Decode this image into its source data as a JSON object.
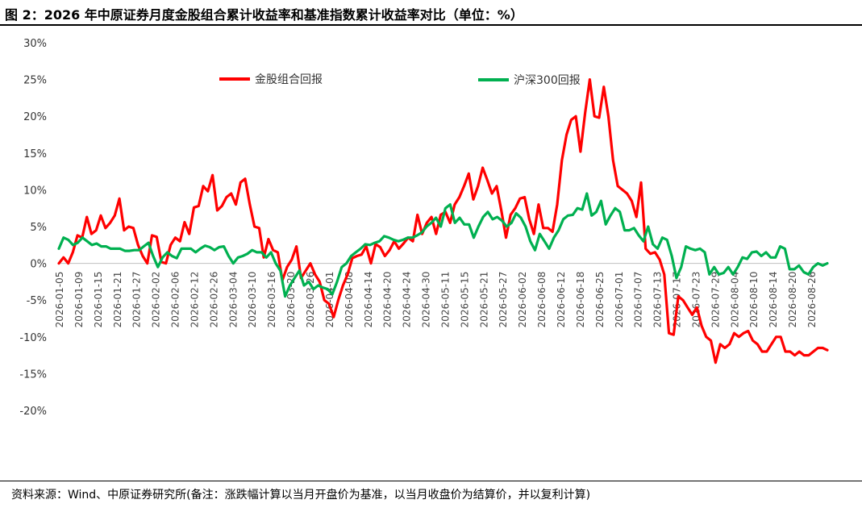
{
  "header": {
    "title": "图 2：2026 年中原证券月度金股组合累计收益率和基准指数累计收益率对比（单位：%）"
  },
  "footer": {
    "source": "资料来源：Wind、中原证券研究所(备注：涨跌幅计算以当月开盘价为基准，以当月收盘价为结算价，并以复利计算)"
  },
  "chart_data": {
    "type": "line",
    "ylim": [
      -20,
      30
    ],
    "ytick_step": 5,
    "ytick_labels": [
      "30%",
      "25%",
      "20%",
      "15%",
      "10%",
      "5%",
      "0%",
      "-5%",
      "-10%",
      "-15%",
      "-20%"
    ],
    "x_tick_labels": [
      "2026-01-05",
      "2026-01-09",
      "2026-01-15",
      "2026-01-21",
      "2026-01-27",
      "2026-02-02",
      "2026-02-06",
      "2026-02-12",
      "2026-02-26",
      "2026-03-04",
      "2026-03-10",
      "2026-03-16",
      "2026-03-20",
      "2026-03-26",
      "2026-04-01",
      "2026-04-08",
      "2026-04-14",
      "2026-04-20",
      "2026-04-24",
      "2026-04-30",
      "2026-05-11",
      "2026-05-15",
      "2026-05-21",
      "2026-05-27",
      "2026-06-02",
      "2026-06-08",
      "2026-06-12",
      "2026-06-18",
      "2026-06-25",
      "2026-07-01",
      "2026-07-07",
      "2026-07-13",
      "2026-07-17",
      "2026-07-23",
      "2026-07-29",
      "2026-08-04",
      "2026-08-10",
      "2026-08-14",
      "2026-08-20",
      "2026-08-26"
    ],
    "legend_position": "top",
    "series": [
      {
        "name": "金股组合回报",
        "color": "#ff0000",
        "values": [
          0.0,
          0.8,
          0.0,
          1.5,
          3.8,
          3.5,
          6.3,
          4.0,
          4.5,
          6.5,
          4.8,
          5.5,
          6.5,
          8.8,
          4.5,
          5.0,
          4.8,
          2.5,
          1.0,
          0.0,
          3.8,
          3.6,
          0.2,
          0.0,
          2.5,
          3.5,
          3.0,
          5.6,
          4.0,
          7.6,
          7.8,
          10.5,
          9.8,
          12.0,
          7.2,
          7.8,
          9.0,
          9.5,
          8.0,
          11.0,
          11.5,
          8.0,
          5.0,
          4.8,
          0.8,
          3.3,
          1.8,
          1.5,
          -2.3,
          -0.5,
          0.5,
          2.3,
          -2.0,
          -1.0,
          0.0,
          -1.5,
          -2.5,
          -5.0,
          -5.5,
          -7.3,
          -5.0,
          -3.0,
          -1.5,
          0.7,
          1.0,
          1.2,
          2.3,
          0.0,
          2.6,
          2.2,
          1.0,
          1.8,
          3.0,
          2.0,
          2.7,
          3.5,
          3.0,
          6.6,
          4.0,
          5.5,
          6.3,
          4.0,
          6.6,
          7.0,
          5.5,
          8.0,
          9.0,
          10.5,
          12.2,
          8.7,
          10.5,
          13.0,
          11.3,
          9.5,
          10.5,
          7.2,
          3.5,
          6.6,
          7.5,
          8.8,
          9.0,
          6.0,
          4.0,
          8.0,
          4.8,
          4.8,
          4.3,
          8.0,
          14.0,
          17.5,
          19.5,
          20.0,
          15.2,
          20.5,
          25.0,
          20.0,
          19.8,
          24.0,
          20.0,
          14.0,
          10.5,
          10.0,
          9.5,
          8.5,
          6.3,
          11.0,
          2.0,
          1.3,
          1.5,
          0.5,
          -1.5,
          -9.5,
          -9.7,
          -4.5,
          -5.0,
          -6.0,
          -7.0,
          -6.0,
          -8.5,
          -10.0,
          -10.5,
          -13.5,
          -11.0,
          -11.5,
          -11.0,
          -9.5,
          -10.0,
          -9.5,
          -9.2,
          -10.5,
          -11.0,
          -12.0,
          -12.0,
          -11.0,
          -10.0,
          -10.0,
          -12.0,
          -12.0,
          -12.5,
          -12.0,
          -12.5,
          -12.5,
          -12.0,
          -11.5,
          -11.5,
          -11.8
        ]
      },
      {
        "name": "沪深300回报",
        "color": "#00b050",
        "values": [
          2.0,
          3.5,
          3.2,
          2.5,
          2.8,
          3.5,
          3.0,
          2.5,
          2.7,
          2.3,
          2.3,
          2.0,
          2.0,
          2.0,
          1.7,
          1.7,
          1.8,
          1.8,
          2.3,
          2.8,
          1.0,
          -0.5,
          0.8,
          1.5,
          1.0,
          0.7,
          2.0,
          2.0,
          2.0,
          1.5,
          2.0,
          2.4,
          2.2,
          1.8,
          2.2,
          2.3,
          1.0,
          0.0,
          0.8,
          1.0,
          1.3,
          1.8,
          1.5,
          1.5,
          0.8,
          1.5,
          0.0,
          -1.0,
          -4.5,
          -3.0,
          -2.0,
          -1.0,
          -3.0,
          -2.5,
          -3.5,
          -3.0,
          -3.3,
          -3.5,
          -4.2,
          -2.5,
          -0.5,
          0.0,
          1.0,
          1.5,
          2.0,
          2.6,
          2.5,
          2.8,
          3.0,
          3.7,
          3.5,
          3.2,
          3.0,
          3.2,
          3.5,
          3.5,
          3.8,
          4.2,
          5.0,
          5.5,
          6.2,
          5.0,
          7.5,
          8.0,
          5.5,
          6.2,
          5.3,
          5.3,
          3.5,
          5.0,
          6.3,
          7.0,
          6.0,
          6.3,
          5.8,
          5.0,
          5.5,
          6.8,
          6.2,
          5.0,
          3.0,
          1.8,
          4.0,
          3.0,
          2.0,
          3.5,
          4.5,
          6.0,
          6.5,
          6.6,
          7.5,
          7.3,
          9.5,
          6.5,
          7.0,
          8.5,
          5.3,
          6.5,
          7.5,
          7.0,
          4.5,
          4.5,
          4.8,
          3.8,
          3.0,
          5.0,
          2.6,
          2.0,
          3.5,
          3.2,
          1.0,
          -2.0,
          -0.5,
          2.3,
          2.0,
          1.8,
          2.0,
          1.5,
          -1.5,
          -0.5,
          -1.5,
          -1.3,
          -0.5,
          -1.5,
          -0.5,
          0.8,
          0.6,
          1.5,
          1.6,
          1.0,
          1.5,
          0.8,
          0.8,
          2.3,
          2.0,
          -0.8,
          -0.8,
          -0.3,
          -1.2,
          -1.5,
          -0.5,
          0.0,
          -0.3,
          0.0
        ]
      }
    ]
  }
}
